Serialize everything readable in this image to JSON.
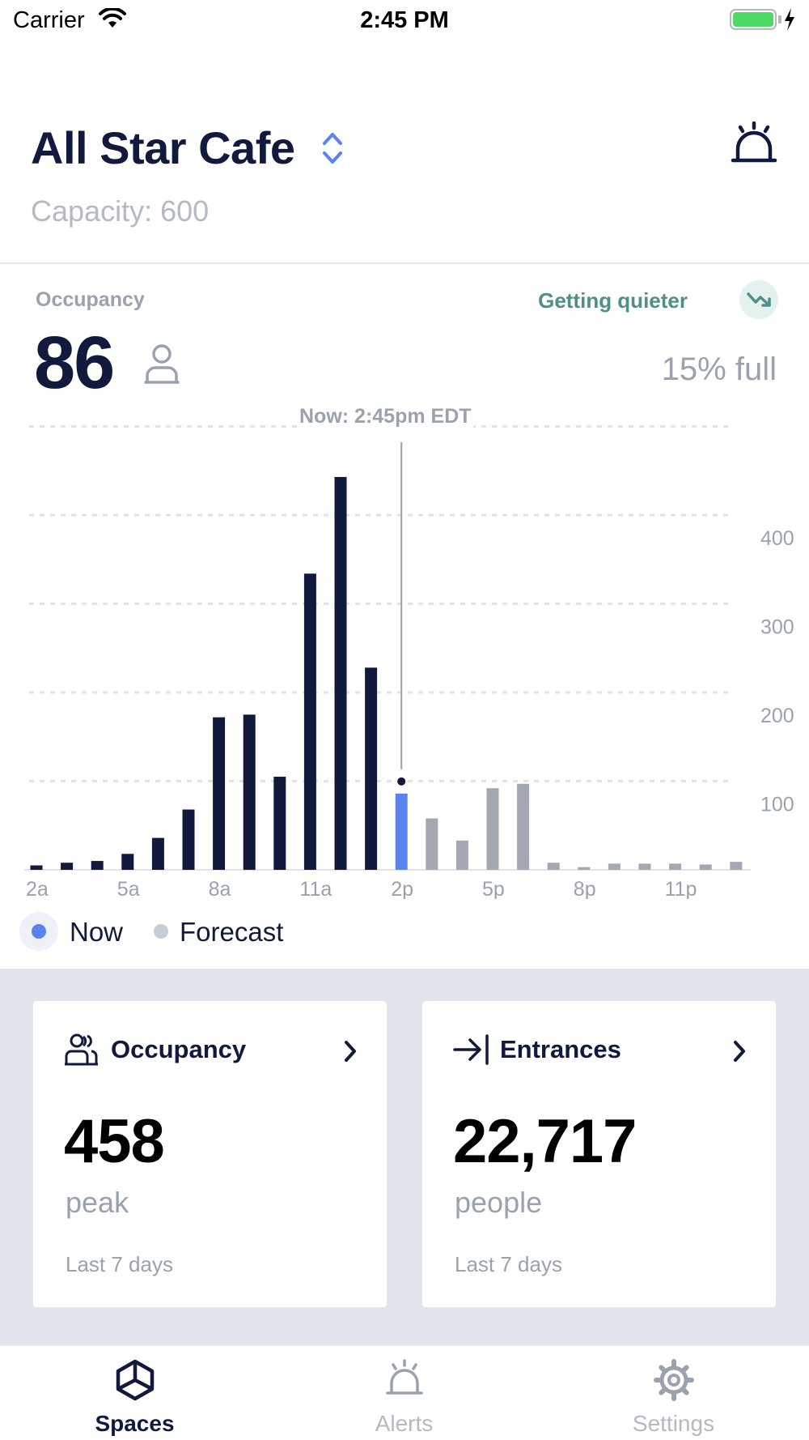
{
  "status_bar": {
    "carrier": "Carrier",
    "time": "2:45 PM"
  },
  "header": {
    "title": "All Star Cafe",
    "capacity": "Capacity: 600"
  },
  "occupancy": {
    "label": "Occupancy",
    "value": "86",
    "trend": "Getting quieter",
    "percent_full": "15% full"
  },
  "chart_data": {
    "type": "bar",
    "x": [
      2,
      3,
      4,
      5,
      6,
      7,
      8,
      9,
      10,
      11,
      12,
      13,
      14,
      15,
      16,
      17,
      18,
      19,
      20,
      21,
      22,
      23,
      24,
      25
    ],
    "values": [
      5,
      8,
      10,
      18,
      36,
      68,
      172,
      175,
      105,
      334,
      443,
      228,
      86,
      58,
      33,
      92,
      97,
      8,
      3,
      7,
      7,
      7,
      6,
      9
    ],
    "status": [
      "past",
      "past",
      "past",
      "past",
      "past",
      "past",
      "past",
      "past",
      "past",
      "past",
      "past",
      "past",
      "now",
      "forecast",
      "forecast",
      "forecast",
      "forecast",
      "forecast",
      "forecast",
      "forecast",
      "forecast",
      "forecast",
      "forecast",
      "forecast"
    ],
    "x_tick_labels": [
      "2a",
      "5a",
      "8a",
      "11a",
      "2p",
      "5p",
      "8p",
      "11p"
    ],
    "y_ticks": [
      100,
      200,
      300,
      400
    ],
    "ylim": [
      0,
      500
    ],
    "now_label": "Now: 2:45pm EDT",
    "now_value": 86,
    "colors": {
      "past": "#111a3d",
      "now": "#5a83f0",
      "forecast": "#a3a8b2"
    },
    "grid": true
  },
  "legend": {
    "now": "Now",
    "forecast": "Forecast"
  },
  "cards": [
    {
      "title": "Occupancy",
      "value": "458",
      "unit": "peak",
      "period": "Last 7 days",
      "icon": "people-icon"
    },
    {
      "title": "Entrances",
      "value": "22,717",
      "unit": "people",
      "period": "Last 7 days",
      "icon": "entrance-icon"
    }
  ],
  "tabs": [
    {
      "label": "Spaces",
      "icon": "cube-icon",
      "active": true
    },
    {
      "label": "Alerts",
      "icon": "alarm-icon",
      "active": false
    },
    {
      "label": "Settings",
      "icon": "gear-icon",
      "active": false
    }
  ]
}
